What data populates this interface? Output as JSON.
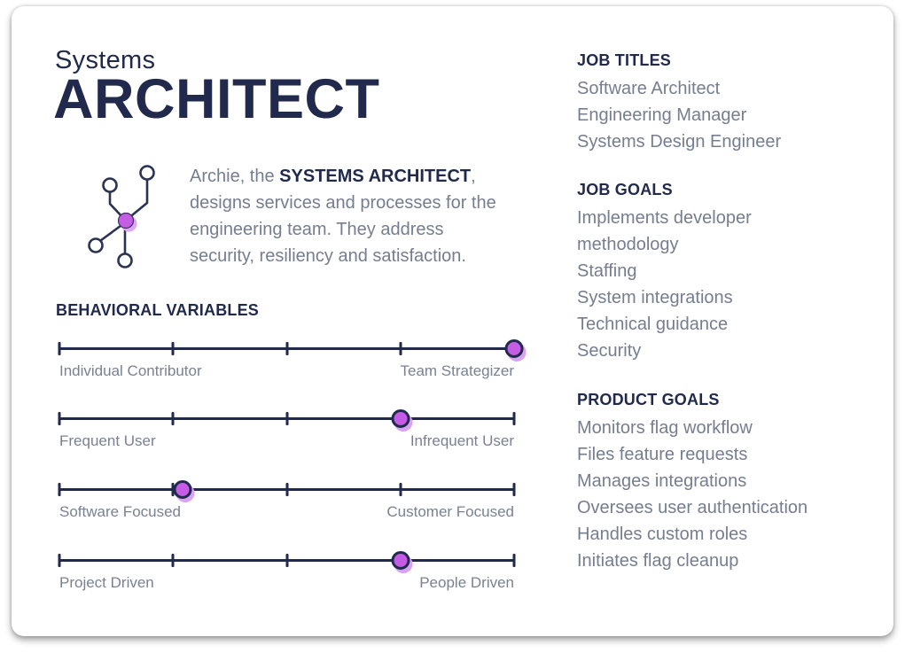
{
  "card": {
    "title_line1": "Systems",
    "title_line2": "ARCHITECT",
    "intro_lines": [
      {
        "pre": "Archie, the ",
        "bold": "SYSTEMS ARCHITECT",
        "post": ","
      },
      {
        "pre": "designs services and processes for the",
        "bold": "",
        "post": ""
      },
      {
        "pre": "engineering team. They address",
        "bold": "",
        "post": ""
      },
      {
        "pre": "security, resiliency and satisfaction.",
        "bold": "",
        "post": ""
      }
    ],
    "behavioral": {
      "heading": "BEHAVIORAL VARIABLES",
      "ticks_pct": [
        0,
        25,
        50,
        75,
        100
      ],
      "sliders": [
        {
          "left_label": "Individual Contributor",
          "right_label": "Team Strategizer",
          "value_pct": 100
        },
        {
          "left_label": "Frequent User",
          "right_label": "Infrequent User",
          "value_pct": 75
        },
        {
          "left_label": "Software Focused",
          "right_label": "Customer Focused",
          "value_pct": 27
        },
        {
          "left_label": "Project Driven",
          "right_label": "People Driven",
          "value_pct": 75
        }
      ]
    },
    "sections": [
      {
        "heading": "JOB TITLES",
        "items": [
          "Software Architect",
          "Engineering Manager",
          "Systems Design Engineer"
        ]
      },
      {
        "heading": "JOB GOALS",
        "items": [
          "Implements developer methodology",
          "Staffing",
          "System integrations",
          "Technical guidance",
          "Security"
        ]
      },
      {
        "heading": "PRODUCT GOALS",
        "items": [
          "Monitors flag workflow",
          "Files feature requests",
          "Manages integrations",
          "Oversees user authentication",
          "Handles custom roles",
          "Initiates flag cleanup"
        ]
      }
    ],
    "colors": {
      "navy": "#212a4c",
      "gray_text": "#757d8f",
      "purple": "#c45ce5",
      "purple_glow": "#d9a2f2"
    }
  }
}
